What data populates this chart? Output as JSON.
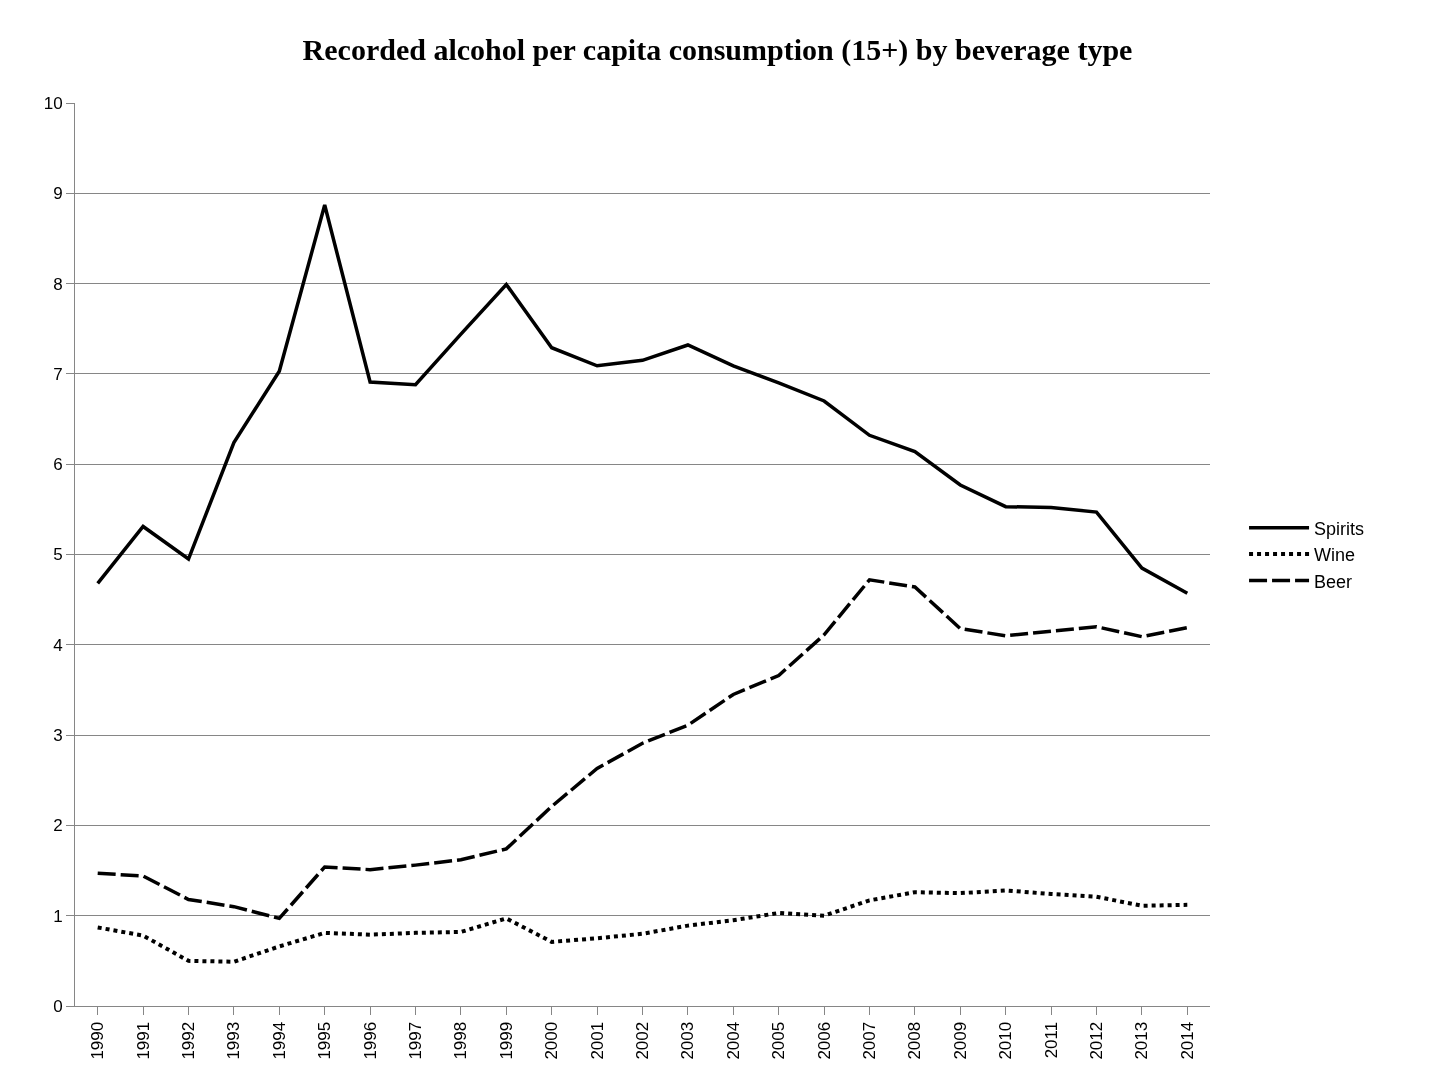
{
  "chart_data": {
    "type": "line",
    "title": "Recorded alcohol per capita consumption (15+) by beverage type",
    "categories": [
      "1990",
      "1991",
      "1992",
      "1993",
      "1994",
      "1995",
      "1996",
      "1997",
      "1998",
      "1999",
      "2000",
      "2001",
      "2002",
      "2003",
      "2004",
      "2005",
      "2006",
      "2007",
      "2008",
      "2009",
      "2010",
      "2011",
      "2012",
      "2013",
      "2014"
    ],
    "series": [
      {
        "name": "Spirits",
        "color": "#000000",
        "line_style": "solid",
        "values": [
          4.68,
          5.31,
          4.95,
          6.24,
          7.03,
          8.87,
          6.91,
          6.88,
          7.44,
          7.99,
          7.29,
          7.09,
          7.15,
          7.32,
          7.09,
          6.9,
          6.7,
          6.32,
          6.14,
          5.77,
          5.53,
          5.52,
          5.47,
          4.85,
          4.57
        ]
      },
      {
        "name": "Wine",
        "color": "#000000",
        "line_style": "dotted",
        "values": [
          0.87,
          0.78,
          0.5,
          0.49,
          0.66,
          0.81,
          0.79,
          0.81,
          0.82,
          0.97,
          0.71,
          0.75,
          0.8,
          0.89,
          0.95,
          1.03,
          1.0,
          1.17,
          1.26,
          1.25,
          1.28,
          1.24,
          1.21,
          1.11,
          1.12
        ]
      },
      {
        "name": "Beer",
        "color": "#000000",
        "line_style": "dashed",
        "values": [
          1.47,
          1.44,
          1.18,
          1.1,
          0.97,
          1.54,
          1.51,
          1.56,
          1.62,
          1.74,
          2.21,
          2.63,
          2.91,
          3.11,
          3.45,
          3.66,
          4.11,
          4.72,
          4.64,
          4.18,
          4.1,
          4.15,
          4.2,
          4.09,
          4.19
        ]
      }
    ],
    "ylim": [
      0,
      10
    ],
    "yticks": [
      0,
      1,
      2,
      3,
      4,
      5,
      6,
      7,
      8,
      9,
      10
    ],
    "grid": "y",
    "legend": "right",
    "marker": "none"
  }
}
